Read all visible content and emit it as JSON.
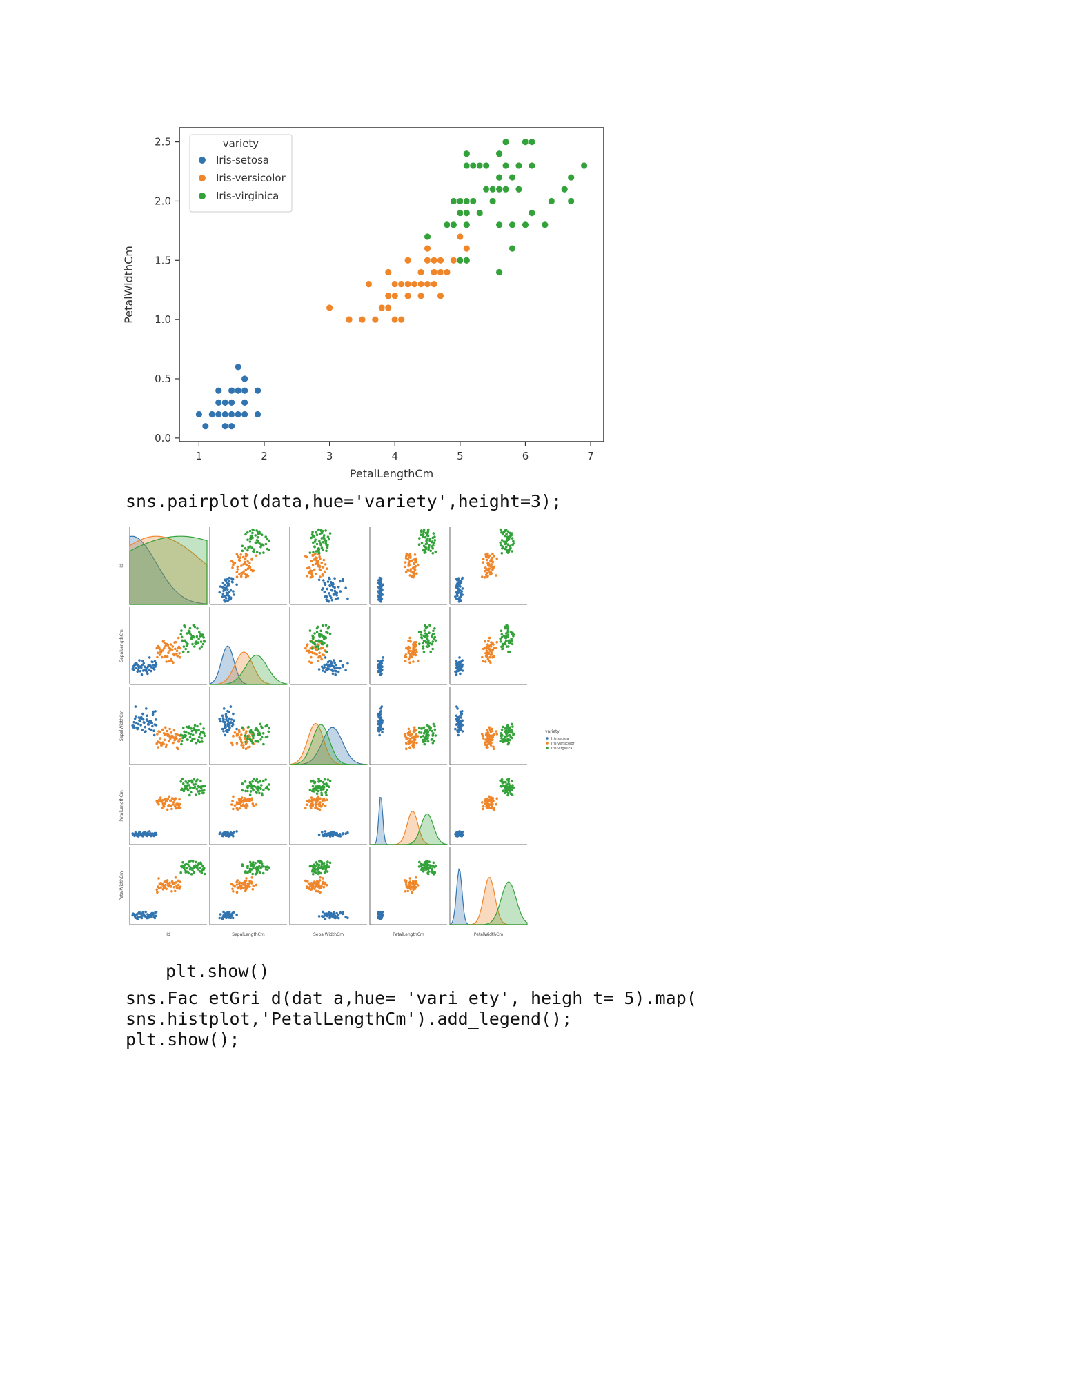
{
  "colors": {
    "setosa": "#3274b0",
    "versicolor": "#f0862a",
    "virginica": "#34a23a"
  },
  "chart_data": [
    {
      "type": "scatter",
      "xlabel": "PetalLengthCm",
      "ylabel": "PetalWidthCm",
      "xlim": [
        0.7,
        7.2
      ],
      "ylim": [
        -0.03,
        2.62
      ],
      "xticks": [
        "1",
        "2",
        "3",
        "4",
        "5",
        "6",
        "7"
      ],
      "yticks": [
        "0.0",
        "0.5",
        "1.0",
        "1.5",
        "2.0",
        "2.5"
      ],
      "legend": {
        "title": "variety",
        "placement": "top-left"
      },
      "series": [
        {
          "name": "Iris-setosa",
          "color": "#3274b0",
          "points": [
            [
              1.0,
              0.2
            ],
            [
              1.1,
              0.1
            ],
            [
              1.2,
              0.2
            ],
            [
              1.3,
              0.2
            ],
            [
              1.3,
              0.3
            ],
            [
              1.3,
              0.4
            ],
            [
              1.4,
              0.2
            ],
            [
              1.4,
              0.1
            ],
            [
              1.4,
              0.3
            ],
            [
              1.5,
              0.2
            ],
            [
              1.5,
              0.1
            ],
            [
              1.5,
              0.4
            ],
            [
              1.5,
              0.3
            ],
            [
              1.6,
              0.2
            ],
            [
              1.6,
              0.4
            ],
            [
              1.6,
              0.6
            ],
            [
              1.7,
              0.2
            ],
            [
              1.7,
              0.4
            ],
            [
              1.7,
              0.3
            ],
            [
              1.7,
              0.5
            ],
            [
              1.9,
              0.2
            ],
            [
              1.9,
              0.4
            ]
          ]
        },
        {
          "name": "Iris-versicolor",
          "color": "#f0862a",
          "points": [
            [
              3.0,
              1.1
            ],
            [
              3.3,
              1.0
            ],
            [
              3.5,
              1.0
            ],
            [
              3.6,
              1.3
            ],
            [
              3.7,
              1.0
            ],
            [
              3.8,
              1.1
            ],
            [
              3.9,
              1.1
            ],
            [
              3.9,
              1.2
            ],
            [
              3.9,
              1.4
            ],
            [
              4.0,
              1.0
            ],
            [
              4.0,
              1.2
            ],
            [
              4.0,
              1.3
            ],
            [
              4.1,
              1.0
            ],
            [
              4.1,
              1.3
            ],
            [
              4.2,
              1.2
            ],
            [
              4.2,
              1.3
            ],
            [
              4.2,
              1.5
            ],
            [
              4.3,
              1.3
            ],
            [
              4.4,
              1.2
            ],
            [
              4.4,
              1.3
            ],
            [
              4.4,
              1.4
            ],
            [
              4.5,
              1.3
            ],
            [
              4.5,
              1.5
            ],
            [
              4.5,
              1.6
            ],
            [
              4.6,
              1.3
            ],
            [
              4.6,
              1.4
            ],
            [
              4.6,
              1.5
            ],
            [
              4.7,
              1.2
            ],
            [
              4.7,
              1.4
            ],
            [
              4.7,
              1.5
            ],
            [
              4.8,
              1.4
            ],
            [
              4.8,
              1.8
            ],
            [
              4.9,
              1.5
            ],
            [
              5.0,
              1.7
            ],
            [
              5.1,
              1.6
            ]
          ]
        },
        {
          "name": "Iris-virginica",
          "color": "#34a23a",
          "points": [
            [
              4.5,
              1.7
            ],
            [
              4.8,
              1.8
            ],
            [
              4.9,
              1.8
            ],
            [
              4.9,
              2.0
            ],
            [
              5.0,
              1.5
            ],
            [
              5.0,
              2.0
            ],
            [
              5.0,
              1.9
            ],
            [
              5.1,
              1.5
            ],
            [
              5.1,
              1.8
            ],
            [
              5.1,
              1.9
            ],
            [
              5.1,
              2.0
            ],
            [
              5.1,
              2.3
            ],
            [
              5.1,
              2.4
            ],
            [
              5.2,
              2.0
            ],
            [
              5.2,
              2.3
            ],
            [
              5.3,
              2.3
            ],
            [
              5.3,
              1.9
            ],
            [
              5.4,
              2.3
            ],
            [
              5.4,
              2.1
            ],
            [
              5.5,
              2.1
            ],
            [
              5.5,
              2.0
            ],
            [
              5.6,
              1.8
            ],
            [
              5.6,
              2.1
            ],
            [
              5.6,
              2.2
            ],
            [
              5.6,
              2.4
            ],
            [
              5.6,
              1.4
            ],
            [
              5.7,
              2.1
            ],
            [
              5.7,
              2.3
            ],
            [
              5.7,
              2.5
            ],
            [
              5.8,
              1.8
            ],
            [
              5.8,
              1.6
            ],
            [
              5.8,
              2.2
            ],
            [
              5.9,
              2.1
            ],
            [
              5.9,
              2.3
            ],
            [
              6.0,
              1.8
            ],
            [
              6.0,
              2.5
            ],
            [
              6.1,
              1.9
            ],
            [
              6.1,
              2.3
            ],
            [
              6.1,
              2.5
            ],
            [
              6.3,
              1.8
            ],
            [
              6.4,
              2.0
            ],
            [
              6.6,
              2.1
            ],
            [
              6.7,
              2.2
            ],
            [
              6.7,
              2.0
            ],
            [
              6.9,
              2.3
            ]
          ]
        }
      ]
    },
    {
      "type": "scatter",
      "variables": [
        "Id",
        "SepalLengthCm",
        "SepalWidthCm",
        "PetalLengthCm",
        "PetalWidthCm"
      ],
      "legend": {
        "title": "variety",
        "entries": [
          "Iris-setosa",
          "Iris-versicolor",
          "Iris-virginica"
        ],
        "placement": "right"
      },
      "diagonal": "kde"
    }
  ],
  "code": {
    "pairplot": "sns.pairplot(data,hue='variety',height=3);",
    "show1": "plt.show()",
    "facet_line1": "sns.Fac etGri d(dat a,hue= 'vari ety', heigh t= 5).map(",
    "facet_line2": "sns.histplot,'PetalLengthCm').add_legend();",
    "facet_line3": "plt.show();"
  }
}
